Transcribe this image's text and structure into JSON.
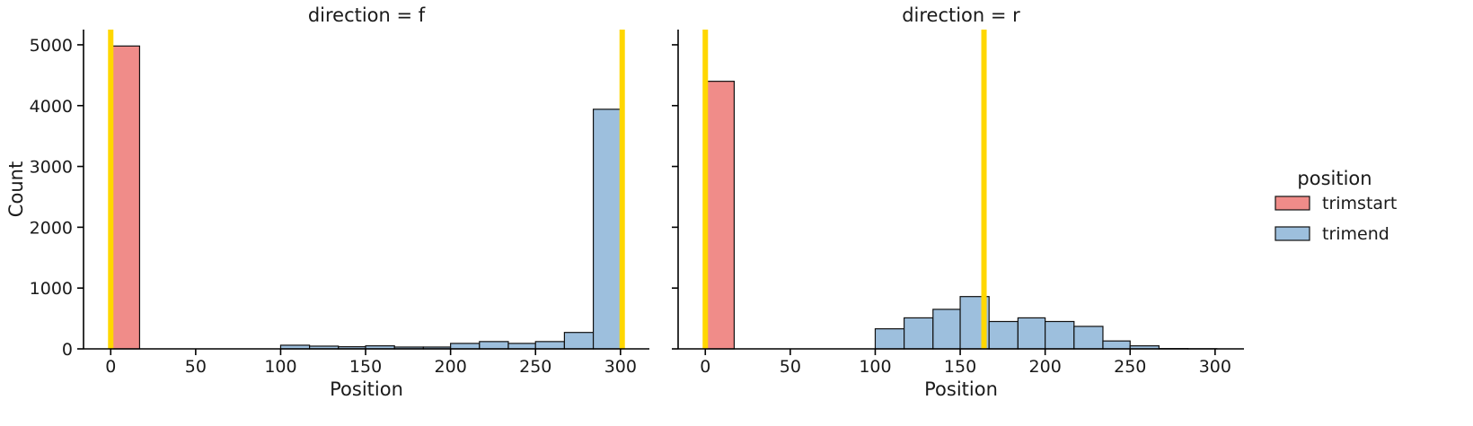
{
  "chart_data": {
    "type": "bar",
    "xlabel": "Position",
    "ylabel": "Count",
    "xlim": [
      -16,
      317
    ],
    "ylim": [
      0,
      5250
    ],
    "xticks": [
      0,
      50,
      100,
      150,
      200,
      250,
      300
    ],
    "yticks": [
      0,
      1000,
      2000,
      3000,
      4000,
      5000
    ],
    "grid": false,
    "legend": {
      "title": "position",
      "placement": "right",
      "entries": [
        {
          "name": "trimstart",
          "color": "#f08c89"
        },
        {
          "name": "trimend",
          "color": "#9dbfdd"
        }
      ]
    },
    "vline_color": "#ffd700",
    "facets": [
      {
        "title": "direction = f",
        "vlines": [
          0,
          301
        ],
        "series": [
          {
            "name": "trimstart",
            "bins": [
              {
                "x0": 0,
                "x1": 17,
                "count": 4980
              }
            ]
          },
          {
            "name": "trimend",
            "bins": [
              {
                "x0": 100,
                "x1": 117,
                "count": 60
              },
              {
                "x0": 117,
                "x1": 134,
                "count": 45
              },
              {
                "x0": 134,
                "x1": 150,
                "count": 35
              },
              {
                "x0": 150,
                "x1": 167,
                "count": 50
              },
              {
                "x0": 167,
                "x1": 184,
                "count": 30
              },
              {
                "x0": 184,
                "x1": 200,
                "count": 30
              },
              {
                "x0": 200,
                "x1": 217,
                "count": 90
              },
              {
                "x0": 217,
                "x1": 234,
                "count": 120
              },
              {
                "x0": 234,
                "x1": 250,
                "count": 90
              },
              {
                "x0": 250,
                "x1": 267,
                "count": 120
              },
              {
                "x0": 267,
                "x1": 284,
                "count": 270
              },
              {
                "x0": 284,
                "x1": 301,
                "count": 3940
              }
            ]
          }
        ]
      },
      {
        "title": "direction = r",
        "vlines": [
          0,
          164
        ],
        "series": [
          {
            "name": "trimstart",
            "bins": [
              {
                "x0": 0,
                "x1": 17,
                "count": 4400
              }
            ]
          },
          {
            "name": "trimend",
            "bins": [
              {
                "x0": 100,
                "x1": 117,
                "count": 330
              },
              {
                "x0": 117,
                "x1": 134,
                "count": 510
              },
              {
                "x0": 134,
                "x1": 150,
                "count": 650
              },
              {
                "x0": 150,
                "x1": 167,
                "count": 860
              },
              {
                "x0": 167,
                "x1": 184,
                "count": 450
              },
              {
                "x0": 184,
                "x1": 200,
                "count": 510
              },
              {
                "x0": 200,
                "x1": 217,
                "count": 450
              },
              {
                "x0": 217,
                "x1": 234,
                "count": 370
              },
              {
                "x0": 234,
                "x1": 250,
                "count": 130
              },
              {
                "x0": 250,
                "x1": 267,
                "count": 50
              },
              {
                "x0": 267,
                "x1": 284,
                "count": 5
              },
              {
                "x0": 284,
                "x1": 301,
                "count": 2
              }
            ]
          }
        ]
      }
    ]
  }
}
